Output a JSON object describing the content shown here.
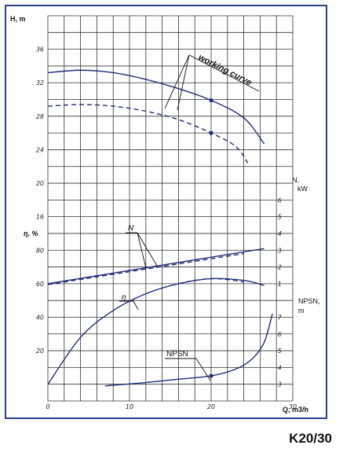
{
  "model": "K20/30",
  "colors": {
    "curve": "#1e2f7a",
    "frame": "#2a3f8a",
    "grid": "#333333"
  },
  "chart_data": {
    "type": "line",
    "xlabel": "Q, m3/h",
    "x_ticks": [
      "0",
      "10",
      "20",
      "30"
    ],
    "xlim": [
      0,
      30
    ],
    "axes": {
      "H": {
        "label": "H, m",
        "ticks": [
          "16",
          "20",
          "24",
          "28",
          "32",
          "36"
        ],
        "range": [
          16,
          38
        ]
      },
      "eta": {
        "label": "η, %",
        "ticks": [
          "20",
          "40",
          "60",
          "80"
        ],
        "range": [
          0,
          80
        ]
      },
      "N": {
        "label": "N,",
        "label_unit": "kW",
        "ticks": [
          "1",
          "2",
          "3",
          "4",
          "5",
          "6"
        ],
        "range": [
          1,
          6
        ]
      },
      "NPSN": {
        "label": "NPSN,",
        "label_unit": "m",
        "ticks": [
          "3",
          "4",
          "5",
          "6",
          "7"
        ],
        "range": [
          3,
          7
        ]
      }
    },
    "series": [
      {
        "name": "working curve",
        "axis": "H",
        "style": "solid",
        "x": [
          0,
          4,
          8,
          12,
          16,
          20,
          24,
          26.5
        ],
        "y": [
          33.2,
          33.5,
          33.2,
          32.4,
          31.3,
          29.9,
          27.8,
          24.7
        ],
        "marker": {
          "x": 20,
          "y": 29.9
        }
      },
      {
        "name": "working curve",
        "axis": "H",
        "style": "dashed",
        "x": [
          0,
          4,
          8,
          12,
          16,
          20,
          23,
          24.5
        ],
        "y": [
          29.2,
          29.4,
          29.2,
          28.6,
          27.6,
          26.0,
          24.4,
          22.4
        ],
        "marker": {
          "x": 20,
          "y": 26.0
        }
      },
      {
        "name": "N",
        "axis": "N",
        "style": "solid",
        "x": [
          0,
          26.5
        ],
        "y": [
          1.0,
          3.1
        ]
      },
      {
        "name": "N",
        "axis": "N",
        "style": "dashed",
        "x": [
          0,
          24
        ],
        "y": [
          0.95,
          2.8
        ]
      },
      {
        "name": "η",
        "axis": "eta",
        "style": "solid",
        "x": [
          0,
          4,
          8,
          12,
          16,
          20,
          24,
          26.5
        ],
        "y": [
          0,
          28,
          44,
          54,
          60,
          63,
          62,
          59
        ]
      },
      {
        "name": "η",
        "axis": "eta",
        "style": "dashed",
        "x": [
          16,
          18,
          20,
          22,
          24
        ],
        "y": [
          60,
          62,
          63,
          62.5,
          61
        ]
      },
      {
        "name": "NPSN",
        "axis": "NPSN",
        "style": "solid",
        "x": [
          7,
          12,
          16,
          20,
          23,
          25,
          26.5,
          27.5
        ],
        "y": [
          2.9,
          3.1,
          3.3,
          3.5,
          3.9,
          4.5,
          5.5,
          7.2
        ],
        "marker": {
          "x": 20,
          "y": 3.5
        }
      }
    ],
    "annotations": [
      "working curve",
      "N",
      "η",
      "NPSN"
    ],
    "grid": true
  }
}
